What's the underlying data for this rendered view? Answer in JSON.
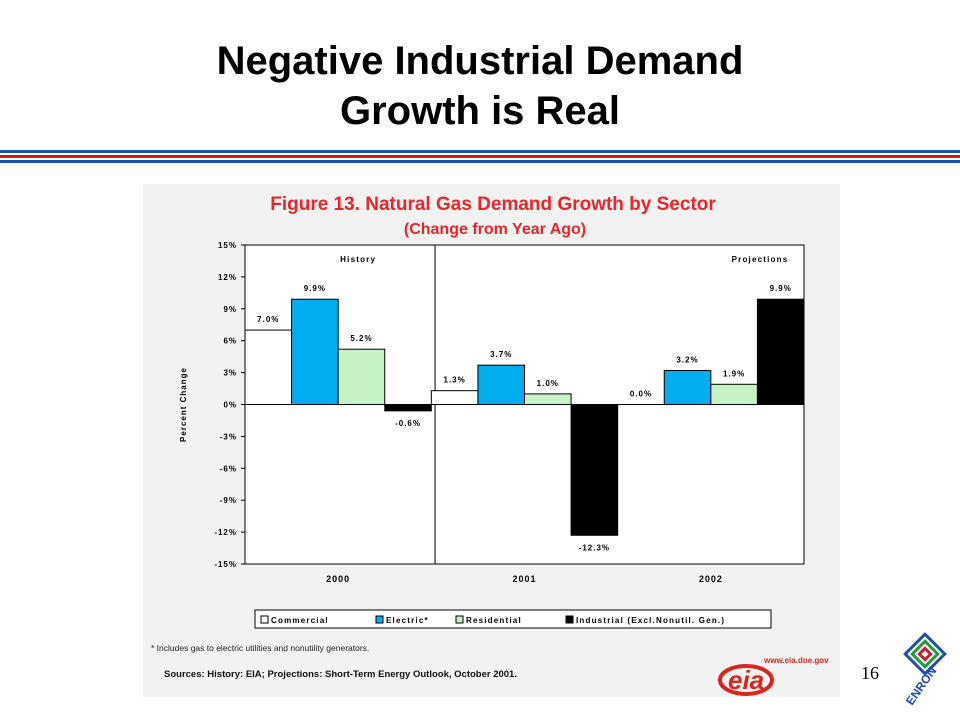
{
  "slide": {
    "title_line1": "Negative Industrial Demand",
    "title_line2": "Growth is Real",
    "page_number": "16",
    "rule_colors": [
      "#1f4fa8",
      "#c8202a",
      "#1f4fa8"
    ]
  },
  "figure": {
    "title": "Figure 13. Natural Gas Demand Growth by Sector",
    "subtitle": "(Change from Year Ago)",
    "footnote": "* Includes gas to electric utilities and nonutility generators.",
    "sources": "Sources: History:  EIA;  Projections: Short-Term Energy Outlook, October 2001.",
    "title_color": "#e8262c"
  },
  "logos": {
    "eia_url": "www.eia.doe.gov",
    "eia_text": "eia",
    "enron_text": "ENRON",
    "eia_color": "#d7261e"
  },
  "chart_data": {
    "type": "bar",
    "title": "Figure 13. Natural Gas Demand Growth by Sector",
    "subtitle": "(Change from Year Ago)",
    "ylabel": "Percent Change",
    "xlabel": "",
    "ylim": [
      -15,
      15
    ],
    "yticks": [
      15,
      12,
      9,
      6,
      3,
      0,
      -3,
      -6,
      -9,
      -12,
      -15
    ],
    "ytick_labels": [
      "15%",
      "12%",
      "9%",
      "6%",
      "3%",
      "0%",
      "-3%",
      "-6%",
      "-9%",
      "-12%",
      "-15%"
    ],
    "categories": [
      "2000",
      "2001",
      "2002"
    ],
    "regions": [
      "History",
      "Projections"
    ],
    "series": [
      {
        "name": "Commercial",
        "color": "#ffffff",
        "values": [
          7.0,
          1.3,
          0.0
        ],
        "labels": [
          "7.0%",
          "1.3%",
          "0.0%"
        ]
      },
      {
        "name": "Electric*",
        "color": "#00aeef",
        "values": [
          9.9,
          3.7,
          3.2
        ],
        "labels": [
          "9.9%",
          "3.7%",
          "3.2%"
        ]
      },
      {
        "name": "Residential",
        "color": "#c6f2c6",
        "values": [
          5.2,
          1.0,
          1.9
        ],
        "labels": [
          "5.2%",
          "1.0%",
          "1.9%"
        ]
      },
      {
        "name": "Industrial (Excl.Nonutil. Gen.)",
        "color": "#000000",
        "values": [
          -0.6,
          -12.3,
          9.9
        ],
        "labels": [
          "-0.6%",
          "-12.3%",
          "9.9%"
        ]
      }
    ],
    "legend_position": "bottom",
    "grid": false
  }
}
